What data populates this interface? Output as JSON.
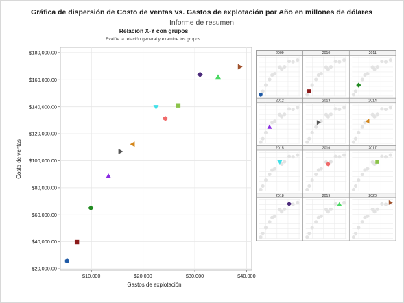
{
  "header": {
    "title": "Gráfica de dispersión de Costo de ventas vs. Gastos de explotación por Año en millones de dólares",
    "subtitle": "Informe de resumen",
    "section_title": "Relación X-Y con grupos",
    "section_note": "Evalúe la relación general y examine los grupos."
  },
  "chart_data": {
    "type": "scatter",
    "xlabel": "Gastos de explotación",
    "ylabel": "Costo de ventas",
    "xlim": [
      4000,
      41000
    ],
    "ylim": [
      19000,
      184000
    ],
    "xticks": [
      10000,
      20000,
      30000,
      40000
    ],
    "xtick_labels": [
      "$10,000",
      "$20,000",
      "$30,000",
      "$40,000"
    ],
    "yticks": [
      20000,
      40000,
      60000,
      80000,
      100000,
      120000,
      140000,
      160000,
      180000
    ],
    "ytick_labels": [
      "$20,000.00",
      "$40,000.00",
      "$60,000.00",
      "$80,000.00",
      "$100,000.00",
      "$120,000.00",
      "$140,000.00",
      "$160,000.00",
      "$180,000.00"
    ],
    "grid": true,
    "points": [
      {
        "year": "2009",
        "x": 5300,
        "y": 25800,
        "color": "#1f5aa6",
        "marker": "hexagon"
      },
      {
        "year": "2010",
        "x": 7200,
        "y": 39800,
        "color": "#8b1a1a",
        "marker": "square"
      },
      {
        "year": "2011",
        "x": 9900,
        "y": 65000,
        "color": "#228b22",
        "marker": "diamond"
      },
      {
        "year": "2012",
        "x": 13300,
        "y": 88500,
        "color": "#8a2be2",
        "marker": "triangle-up"
      },
      {
        "year": "2013",
        "x": 15600,
        "y": 106800,
        "color": "#555555",
        "marker": "triangle-right"
      },
      {
        "year": "2014",
        "x": 18000,
        "y": 112300,
        "color": "#d4861a",
        "marker": "triangle-left"
      },
      {
        "year": "2015",
        "x": 22500,
        "y": 139800,
        "color": "#40e0e8",
        "marker": "triangle-down"
      },
      {
        "year": "2016",
        "x": 24300,
        "y": 131300,
        "color": "#f06a6a",
        "marker": "hexagon"
      },
      {
        "year": "2017",
        "x": 26800,
        "y": 141000,
        "color": "#8bc34a",
        "marker": "square"
      },
      {
        "year": "2018",
        "x": 31000,
        "y": 163800,
        "color": "#4b2a7b",
        "marker": "diamond"
      },
      {
        "year": "2019",
        "x": 34500,
        "y": 162000,
        "color": "#4cd964",
        "marker": "triangle-up"
      },
      {
        "year": "2020",
        "x": 38700,
        "y": 169500,
        "color": "#a0522d",
        "marker": "triangle-right"
      }
    ]
  }
}
